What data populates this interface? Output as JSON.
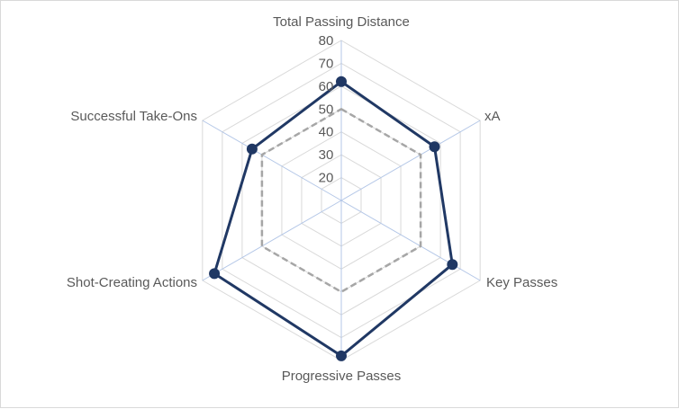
{
  "chart_data": {
    "type": "radar",
    "title": "",
    "categories": [
      "Total Passing Distance",
      "xA",
      "Key Passes",
      "Progressive Passes",
      "Shot-Creating Actions",
      "Successful Take-Ons"
    ],
    "rlim": [
      10,
      80
    ],
    "ticks": [
      20,
      30,
      40,
      50,
      60,
      70,
      80
    ],
    "grid": true,
    "legend": "none",
    "series": [
      {
        "values": [
          62,
          57,
          66,
          78,
          74,
          55
        ],
        "color": "#203864",
        "style": "solid",
        "markers": true
      },
      {
        "values": [
          50,
          50,
          50,
          50,
          50,
          50
        ],
        "color": "#a6a6a6",
        "style": "dashed",
        "markers": false
      }
    ],
    "colors": {
      "grid": "#d9d9d9",
      "axis_spoke": "#b4c7e7",
      "text": "#595959"
    }
  }
}
